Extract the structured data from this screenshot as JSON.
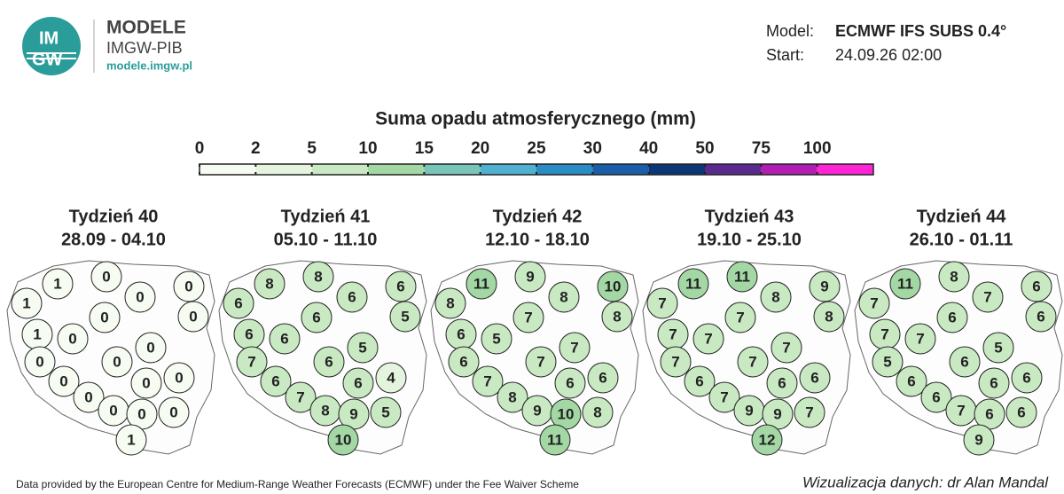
{
  "header": {
    "logo": [
      "IM",
      "GW"
    ],
    "brand": "MODELE",
    "institute": "IMGW-PIB",
    "url": "modele.imgw.pl",
    "model_label": "Model:",
    "model": "ECMWF IFS SUBS 0.4°",
    "start_label": "Start:",
    "start": "24.09.26 02:00"
  },
  "legend": {
    "title": "Suma opadu atmosferycznego (mm)",
    "ticks": [
      0,
      2,
      5,
      10,
      15,
      20,
      25,
      30,
      40,
      50,
      75,
      100
    ],
    "colors": [
      "#f7fcf2",
      "#e4f4de",
      "#c9e9c3",
      "#a3d8a5",
      "#79c6b8",
      "#4fb0d0",
      "#2a8cc4",
      "#1a5ea9",
      "#0b3677",
      "#5b2a8e",
      "#b21db3",
      "#ff24d6"
    ]
  },
  "panels": [
    {
      "title": "Tydzień 40",
      "dates": "28.09 - 04.10",
      "values": [
        1,
        0,
        0,
        1,
        0,
        0,
        0,
        1,
        0,
        0,
        0,
        0,
        0,
        0,
        0,
        0,
        0,
        0,
        0,
        1
      ]
    },
    {
      "title": "Tydzień 41",
      "dates": "05.10 - 11.10",
      "values": [
        8,
        8,
        6,
        6,
        6,
        6,
        5,
        6,
        6,
        5,
        7,
        6,
        6,
        6,
        4,
        7,
        8,
        9,
        5,
        10
      ]
    },
    {
      "title": "Tydzień 42",
      "dates": "12.10 - 18.10",
      "values": [
        11,
        9,
        10,
        8,
        8,
        7,
        8,
        6,
        5,
        7,
        6,
        7,
        7,
        6,
        6,
        8,
        9,
        10,
        8,
        11
      ]
    },
    {
      "title": "Tydzień 43",
      "dates": "19.10 - 25.10",
      "values": [
        11,
        11,
        9,
        7,
        8,
        7,
        8,
        7,
        7,
        7,
        7,
        7,
        6,
        6,
        6,
        7,
        9,
        9,
        7,
        12
      ]
    },
    {
      "title": "Tydzień 44",
      "dates": "26.10 - 01.11",
      "values": [
        11,
        8,
        6,
        7,
        7,
        6,
        6,
        7,
        7,
        5,
        5,
        6,
        6,
        6,
        6,
        6,
        7,
        6,
        6,
        9
      ]
    }
  ],
  "footer": {
    "source": "Data provided by the European Centre for Medium-Range Weather Forecasts (ECMWF) under the Fee Waiver Scheme",
    "credit": "Wizualizacja danych: dr Alan Mandal"
  }
}
